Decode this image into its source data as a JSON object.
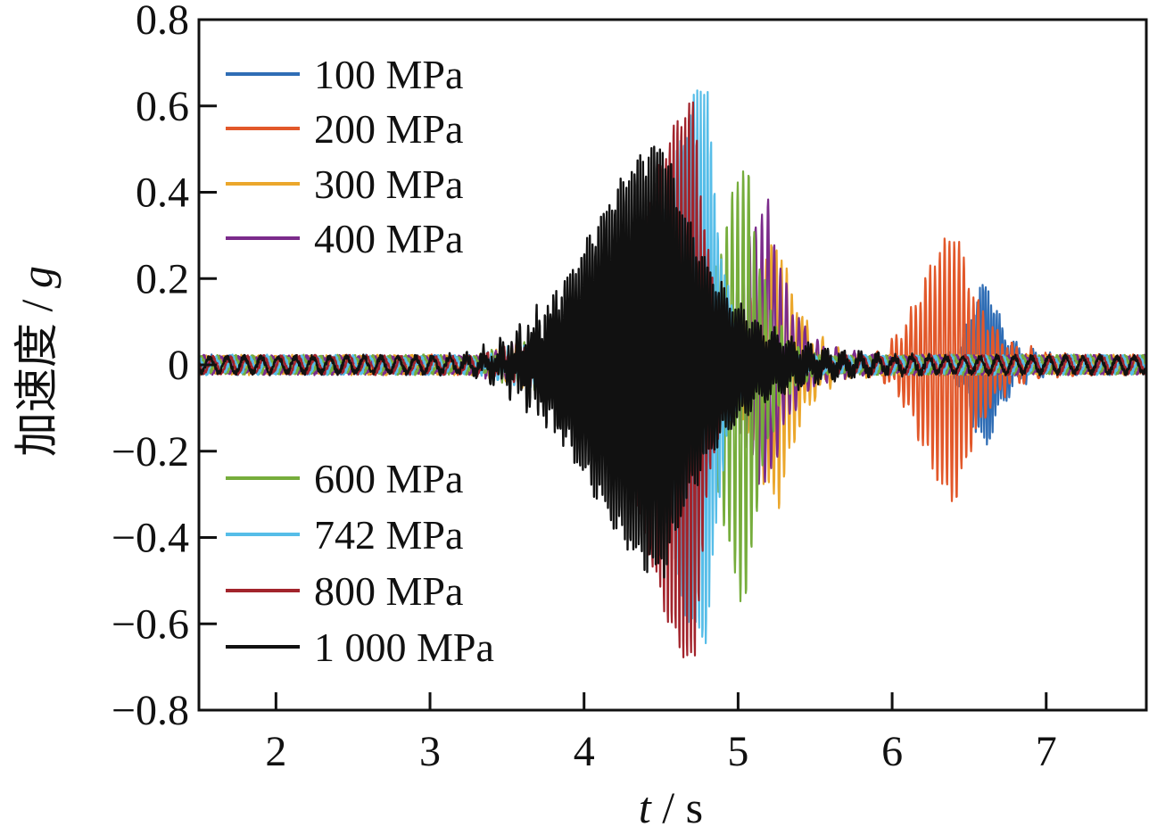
{
  "chart_data": {
    "type": "line",
    "title": "",
    "xlabel": "t / s",
    "ylabel": "加速度 / g",
    "xlabel_parts": {
      "var": "t",
      "unit": " / s"
    },
    "ylabel_parts": {
      "cjk": "加速度",
      "sep": " / ",
      "var": "g"
    },
    "xlim": [
      1.5,
      7.65
    ],
    "ylim": [
      -0.8,
      0.8
    ],
    "x_ticks": [
      2,
      3,
      4,
      5,
      6,
      7
    ],
    "x_tick_labels": [
      "2",
      "3",
      "4",
      "5",
      "6",
      "7"
    ],
    "y_ticks": [
      0.8,
      0.6,
      0.4,
      0.2,
      0,
      -0.2,
      -0.4,
      -0.6,
      -0.8
    ],
    "y_tick_labels": [
      "0.8",
      "0.6",
      "0.4",
      "0.2",
      "0",
      "−0.2",
      "−0.4",
      "−0.6",
      "−0.8"
    ],
    "grid": false,
    "legend_placement": "upper-left and lower-left",
    "series": [
      {
        "name": "100 MPa",
        "color": "#2f6db5",
        "legend_group": "top",
        "peak_time": 6.62,
        "peak_amp": 0.19,
        "neg_peak": -0.19,
        "rise": 0.22,
        "fall": 0.12,
        "freq": 55
      },
      {
        "name": "200 MPa",
        "color": "#e2582a",
        "legend_group": "top",
        "peak_time": 6.42,
        "peak_amp": 0.3,
        "neg_peak": -0.31,
        "rise": 0.45,
        "fall": 0.18,
        "freq": 32
      },
      {
        "name": "300 MPa",
        "color": "#eba72c",
        "legend_group": "top",
        "peak_time": 5.27,
        "peak_amp": 0.28,
        "neg_peak": -0.32,
        "rise": 0.35,
        "fall": 0.15,
        "freq": 30
      },
      {
        "name": "400 MPa",
        "color": "#7b2b8b",
        "legend_group": "top",
        "peak_time": 5.2,
        "peak_amp": 0.37,
        "neg_peak": -0.28,
        "rise": 0.35,
        "fall": 0.15,
        "freq": 25
      },
      {
        "name": "600 MPa",
        "color": "#76ad3c",
        "legend_group": "bottom",
        "peak_time": 5.06,
        "peak_amp": 0.46,
        "neg_peak": -0.55,
        "rise": 0.35,
        "fall": 0.12,
        "freq": 28
      },
      {
        "name": "742 MPa",
        "color": "#56bde8",
        "legend_group": "bottom",
        "peak_time": 4.8,
        "peak_amp": 0.65,
        "neg_peak": -0.65,
        "rise": 0.55,
        "fall": 0.1,
        "freq": 45
      },
      {
        "name": "800 MPa",
        "color": "#a2242c",
        "legend_group": "bottom",
        "peak_time": 4.72,
        "peak_amp": 0.61,
        "neg_peak": -0.7,
        "rise": 0.65,
        "fall": 0.1,
        "freq": 40
      },
      {
        "name": "1 000 MPa",
        "color": "#111111",
        "legend_group": "bottom",
        "peak_time": 4.52,
        "peak_amp": 0.51,
        "neg_peak": -0.48,
        "rise": 0.95,
        "fall": 0.35,
        "freq": 55
      }
    ]
  }
}
